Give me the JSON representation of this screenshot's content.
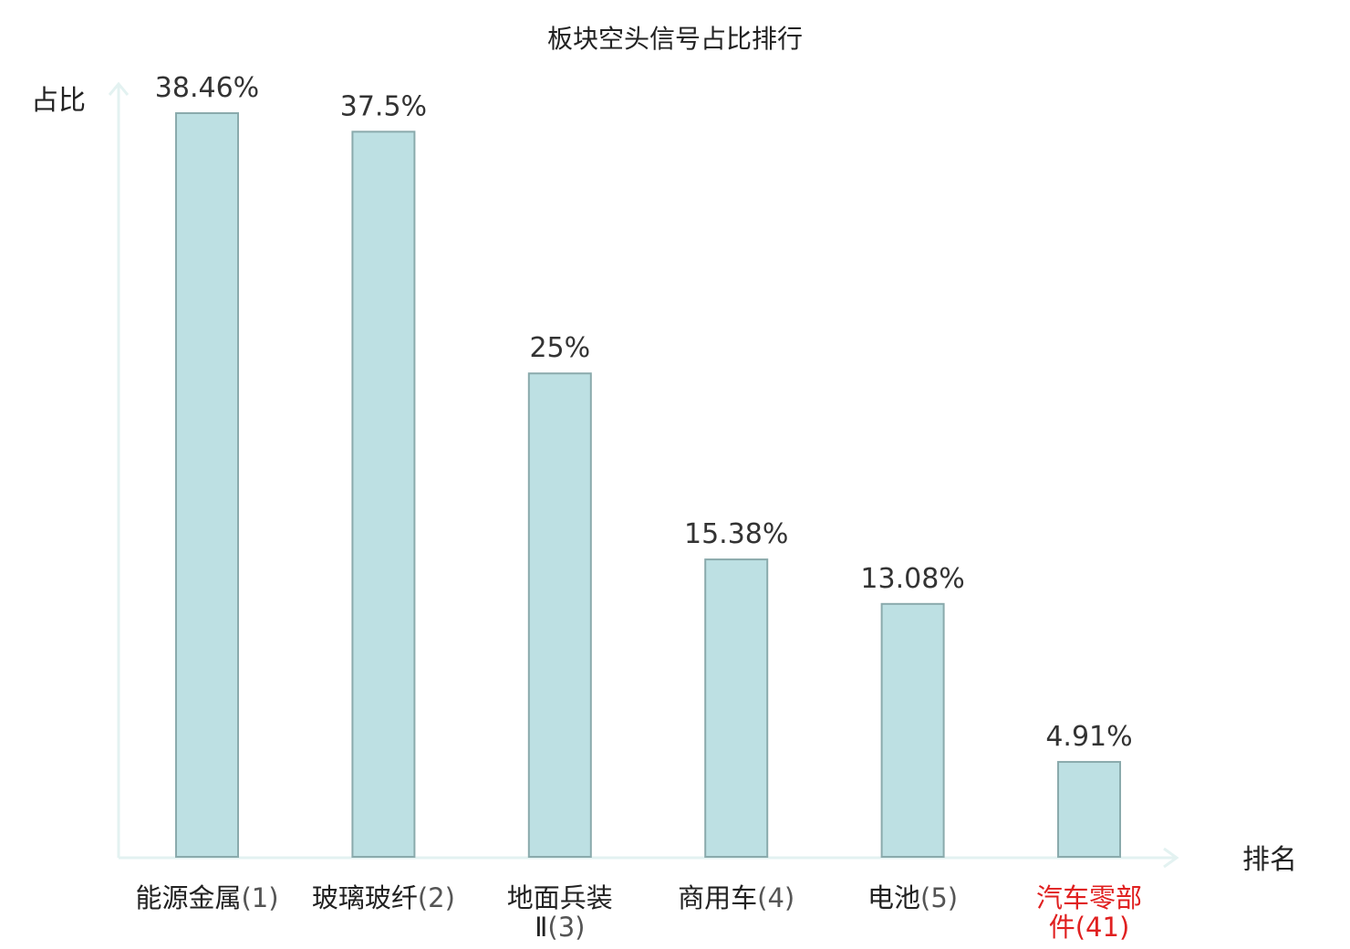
{
  "chart_data": {
    "type": "bar",
    "title": "板块空头信号占比排行",
    "ylabel": "占比",
    "xlabel": "排名",
    "ylim": [
      0,
      41
    ],
    "grid": false,
    "legend": "none",
    "categories": [
      {
        "name": "能源金属",
        "rank": "(1)",
        "highlight": false
      },
      {
        "name": "玻璃玻纤",
        "rank": "(2)",
        "highlight": false
      },
      {
        "name": "地面兵装Ⅱ",
        "rank": "(3)",
        "highlight": false
      },
      {
        "name": "商用车",
        "rank": "(4)",
        "highlight": false
      },
      {
        "name": "电池",
        "rank": "(5)",
        "highlight": false
      },
      {
        "name": "汽车零部件",
        "rank": "(41)",
        "highlight": true
      }
    ],
    "values": [
      38.46,
      37.5,
      25,
      15.38,
      13.08,
      4.91
    ],
    "value_labels": [
      "38.46%",
      "37.5%",
      "25%",
      "15.38%",
      "13.08%",
      "4.91%"
    ]
  },
  "colors": {
    "bar_fill": "#bde0e3",
    "bar_stroke": "#8aaaac",
    "axis": "#e3f2f1",
    "text": "#222222",
    "highlight_text": "#e02020"
  }
}
